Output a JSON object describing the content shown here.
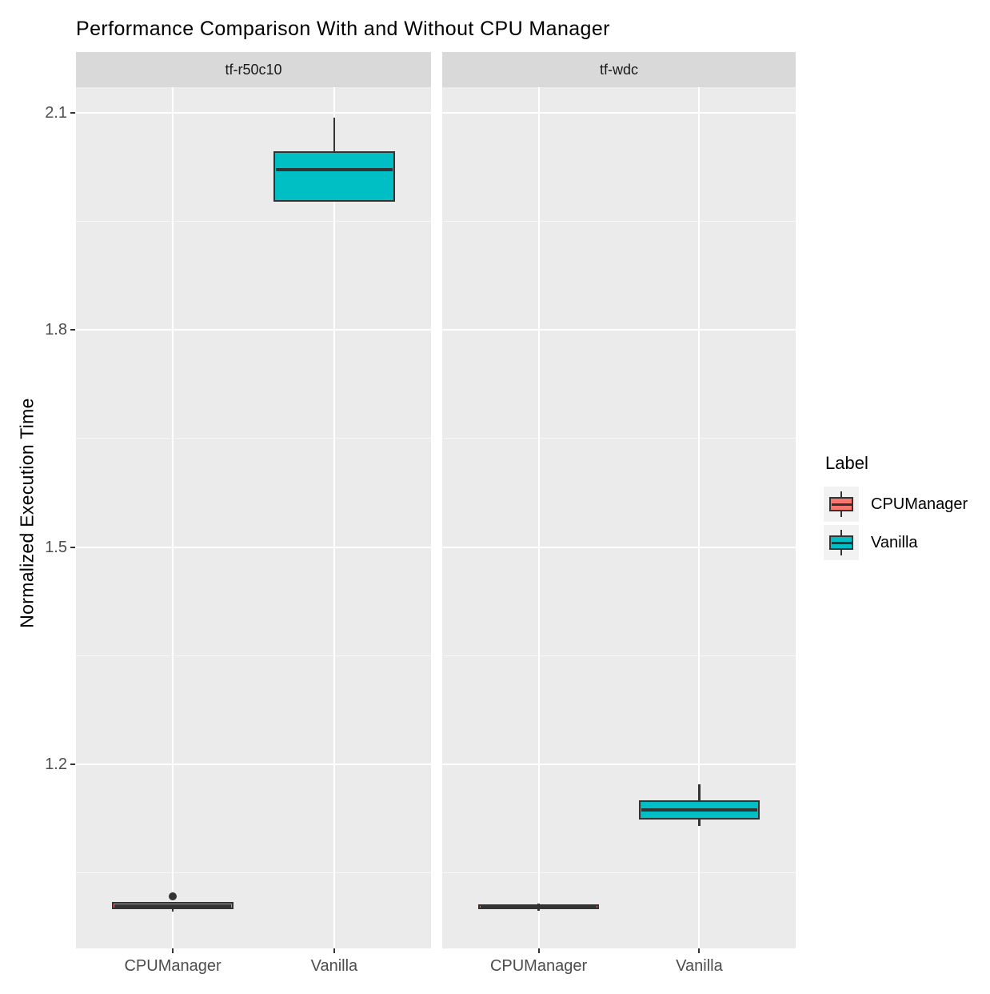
{
  "chart_data": {
    "type": "boxplot",
    "title": "Performance Comparison With and Without CPU Manager",
    "ylabel": "Normalized Execution Time",
    "xlabel": "",
    "ylim": [
      0.946,
      2.135
    ],
    "y_ticks": [
      2.1,
      1.8,
      1.5,
      1.2
    ],
    "y_minor_ticks": [
      1.95,
      1.65,
      1.35,
      1.05
    ],
    "categories": [
      "CPUManager",
      "Vanilla"
    ],
    "grid": "white major and minor horizontal lines plus category verticals on gray panel",
    "legend": {
      "title": "Label",
      "position": "right",
      "entries": [
        {
          "label": "CPUManager",
          "color": "#F8766D"
        },
        {
          "label": "Vanilla",
          "color": "#00BFC4"
        }
      ]
    },
    "facets": [
      {
        "label": "tf-r50c10",
        "boxes": [
          {
            "category": "CPUManager",
            "series": "CPUManager",
            "fill": "#F8766D",
            "whisker_low": 0.997,
            "q1": 1.0,
            "median": 1.005,
            "q3": 1.01,
            "whisker_high": 1.01,
            "outliers": [
              1.018
            ]
          },
          {
            "category": "Vanilla",
            "series": "Vanilla",
            "fill": "#00BFC4",
            "whisker_low": 1.977,
            "q1": 1.977,
            "median": 2.021,
            "q3": 2.047,
            "whisker_high": 2.093,
            "outliers": []
          }
        ]
      },
      {
        "label": "tf-wdc",
        "boxes": [
          {
            "category": "CPUManager",
            "series": "CPUManager",
            "fill": "#F8766D",
            "whisker_low": 0.998,
            "q1": 1.0,
            "median": 1.003,
            "q3": 1.007,
            "whisker_high": 1.008,
            "outliers": []
          },
          {
            "category": "Vanilla",
            "series": "Vanilla",
            "fill": "#00BFC4",
            "whisker_low": 1.115,
            "q1": 1.124,
            "median": 1.137,
            "q3": 1.15,
            "whisker_high": 1.173,
            "outliers": []
          }
        ]
      }
    ],
    "palette": {
      "background": "#FFFFFF",
      "panel_bg": "#EBEBEB",
      "strip_bg": "#D9D9D9",
      "gridline": "#FFFFFF",
      "box_outline": "#333333",
      "axis_text": "#4D4D4D",
      "strip_text": "#1A1A1A",
      "legend_key_bg": "#F2F2F2",
      "text": "#000000"
    }
  }
}
